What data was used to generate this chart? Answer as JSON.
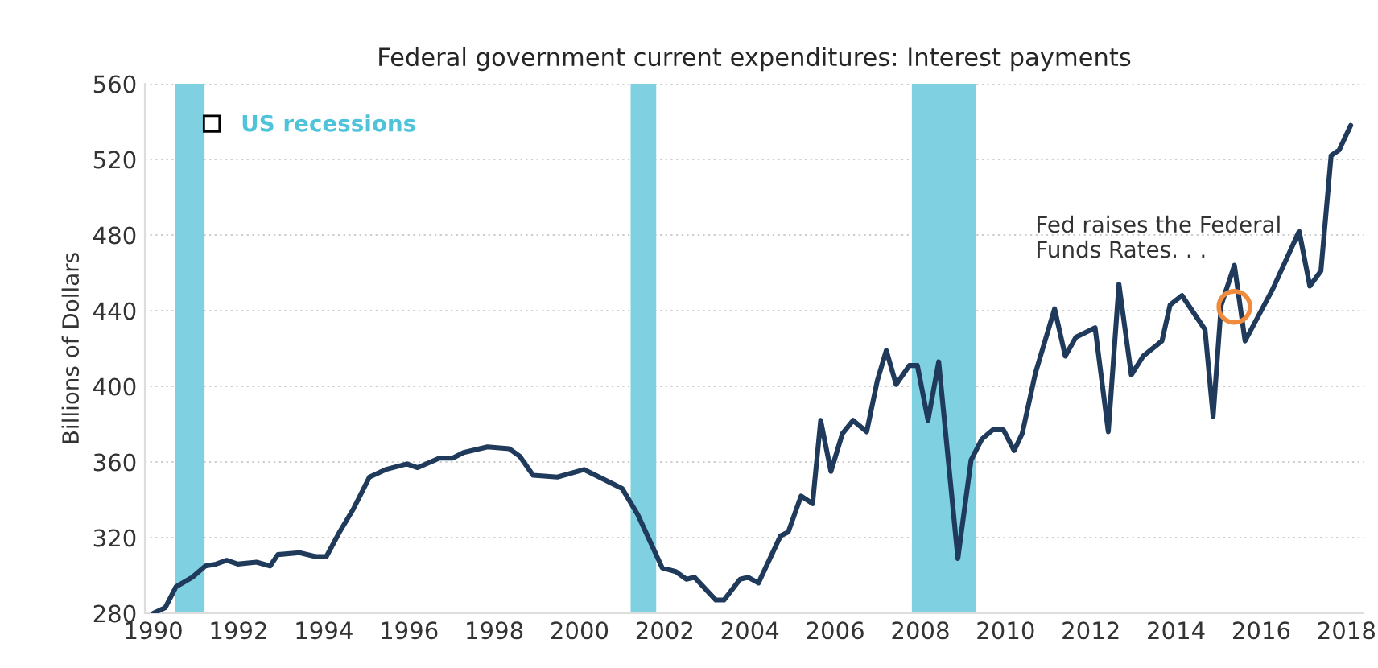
{
  "chart_data": {
    "type": "line",
    "title": "Federal government current expenditures: Interest payments",
    "ylabel": "Billions of Dollars",
    "series": [
      {
        "color": "#1f3a5a",
        "x": [
          1990.0,
          1990.28,
          1990.53,
          1990.91,
          1991.22,
          1991.47,
          1991.72,
          1991.98,
          1992.42,
          1992.74,
          1992.92,
          1993.43,
          1993.8,
          1994.06,
          1994.37,
          1994.69,
          1995.07,
          1995.45,
          1995.95,
          1996.2,
          1996.71,
          1997.02,
          1997.28,
          1997.84,
          1998.35,
          1998.6,
          1998.91,
          1999.48,
          2000.11,
          2001.0,
          2001.37,
          2001.94,
          2002.26,
          2002.51,
          2002.7,
          2003.2,
          2003.39,
          2003.77,
          2003.96,
          2004.2,
          2004.72,
          2004.9,
          2005.2,
          2005.47,
          2005.66,
          2005.9,
          2006.17,
          2006.42,
          2006.74,
          2006.99,
          2007.2,
          2007.43,
          2007.74,
          2007.93,
          2008.18,
          2008.43,
          2008.88,
          2009.19,
          2009.44,
          2009.7,
          2009.95,
          2010.2,
          2010.39,
          2010.7,
          2011.15,
          2011.4,
          2011.65,
          2012.1,
          2012.41,
          2012.66,
          2012.95,
          2013.23,
          2013.67,
          2013.86,
          2014.14,
          2014.68,
          2014.87,
          2015.06,
          2015.37,
          2015.62,
          2016.26,
          2016.89,
          2017.14,
          2017.4,
          2017.64,
          2017.83,
          2018.1
        ],
        "values": [
          280,
          283,
          294,
          299,
          305,
          306,
          308,
          306,
          307,
          305,
          311,
          312,
          310,
          310,
          323,
          335,
          352,
          356,
          359,
          357,
          362,
          362,
          365,
          368,
          367,
          363,
          353,
          352,
          356,
          346,
          332,
          304,
          302,
          298,
          299,
          287,
          287,
          298,
          299,
          296,
          321,
          323,
          342,
          338,
          382,
          355,
          375,
          382,
          376,
          403,
          419,
          401,
          411,
          411,
          382,
          413,
          309,
          361,
          372,
          377,
          377,
          366,
          375,
          407,
          441,
          416,
          426,
          431,
          376,
          454,
          406,
          416,
          424,
          443,
          448,
          430,
          384,
          443,
          464,
          424,
          451,
          482,
          453,
          461,
          522,
          525,
          538
        ]
      }
    ],
    "xlim": [
      1989.8,
      2018.4
    ],
    "xticks": [
      1990,
      1992,
      1994,
      1996,
      1998,
      2000,
      2002,
      2004,
      2006,
      2008,
      2010,
      2012,
      2014,
      2016,
      2018
    ],
    "ylim": [
      280,
      560
    ],
    "yticks": [
      280,
      320,
      360,
      400,
      440,
      480,
      520,
      560
    ],
    "bands": [
      {
        "axis": "x",
        "from": 1990.5,
        "to": 1991.2,
        "label": "US recessions",
        "color": "#7fd0e0"
      },
      {
        "axis": "x",
        "from": 2001.2,
        "to": 2001.8,
        "color": "#7fd0e0"
      },
      {
        "axis": "x",
        "from": 2007.8,
        "to": 2009.3,
        "color": "#7fd0e0"
      }
    ],
    "annotations": [
      {
        "text": "Fed raises the Federal\nFunds Rates. . .",
        "x": 2015.37,
        "y": 442
      }
    ],
    "grid": "y",
    "legend": "top left"
  }
}
